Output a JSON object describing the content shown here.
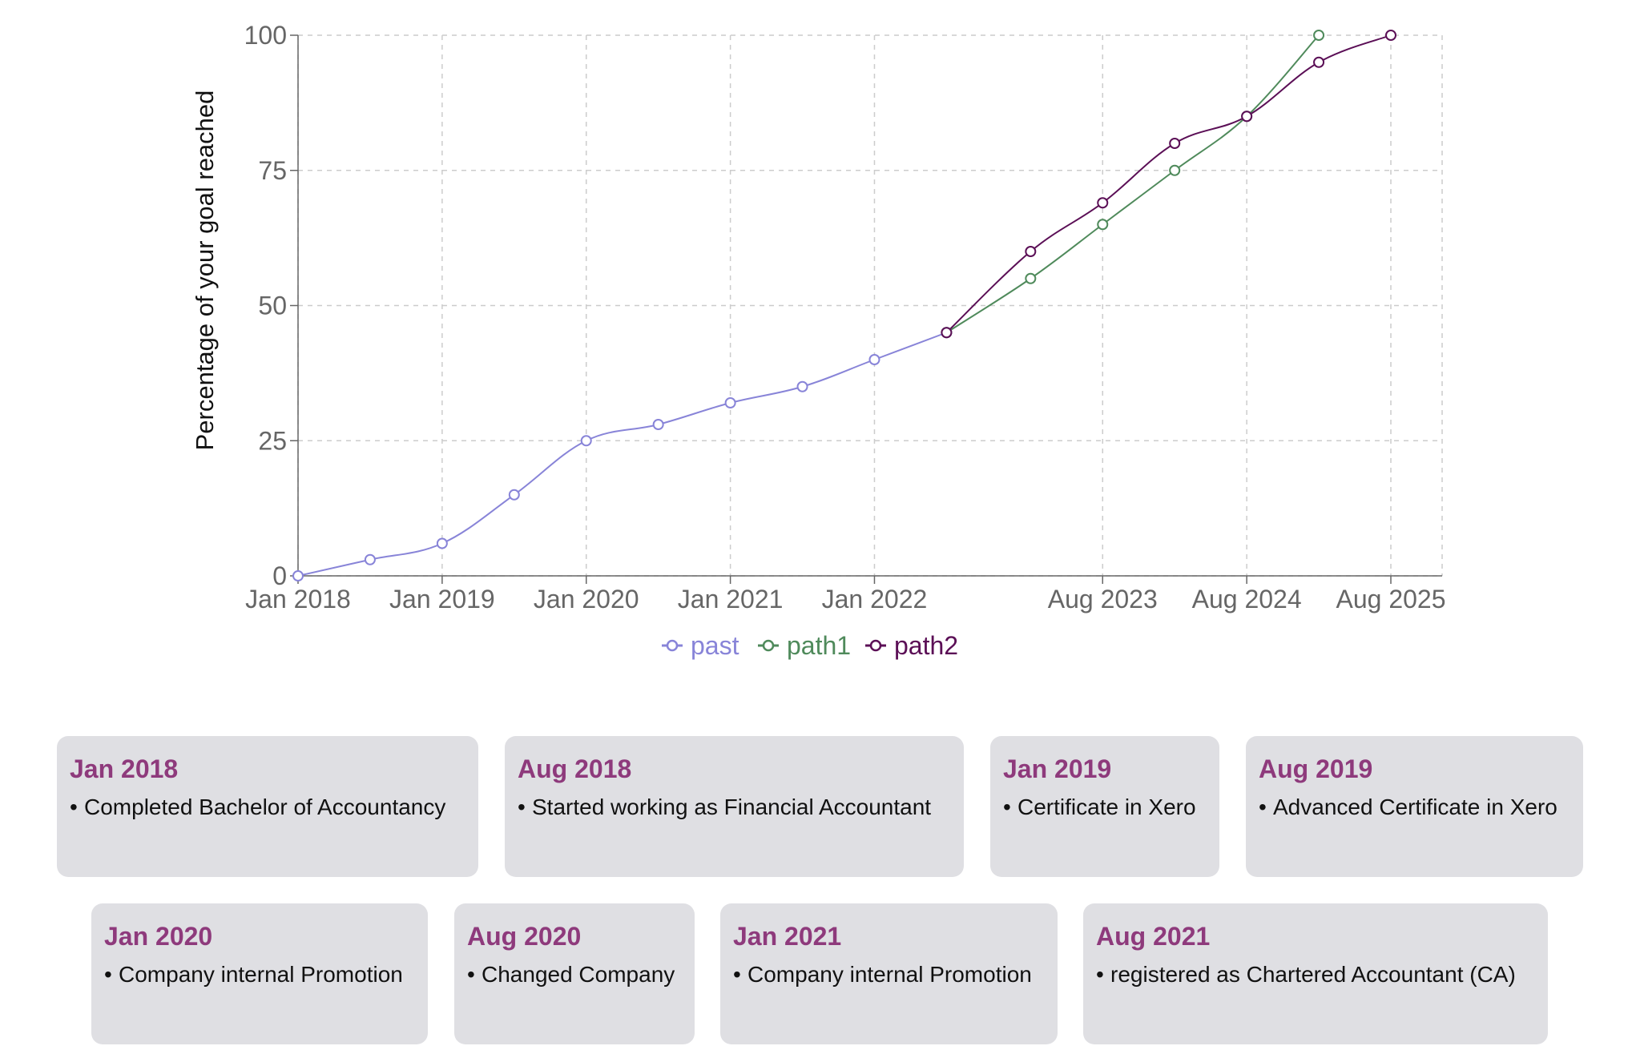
{
  "chart_data": {
    "type": "line",
    "ylabel": "Percentage of your goal reached",
    "ylim": [
      0,
      100
    ],
    "yticks": [
      0,
      25,
      50,
      75,
      100
    ],
    "xlim": [
      "2018-01",
      "2025-08"
    ],
    "xticks": [
      {
        "date": "2018-01",
        "label": "Jan 2018"
      },
      {
        "date": "2019-01",
        "label": "Jan 2019"
      },
      {
        "date": "2020-01",
        "label": "Jan 2020"
      },
      {
        "date": "2021-01",
        "label": "Jan 2021"
      },
      {
        "date": "2022-01",
        "label": "Jan 2022"
      },
      {
        "date": "2023-08",
        "label": "Aug 2023"
      },
      {
        "date": "2024-08",
        "label": "Aug 2024"
      },
      {
        "date": "2025-08",
        "label": "Aug 2025"
      }
    ],
    "grid": true,
    "legend_position": "bottom",
    "series": [
      {
        "name": "past",
        "color": "#8884d8",
        "points": [
          {
            "x": "2018-01",
            "y": 0
          },
          {
            "x": "2018-07",
            "y": 3
          },
          {
            "x": "2019-01",
            "y": 6
          },
          {
            "x": "2019-07",
            "y": 15
          },
          {
            "x": "2020-01",
            "y": 25
          },
          {
            "x": "2020-07",
            "y": 28
          },
          {
            "x": "2021-01",
            "y": 32
          },
          {
            "x": "2021-07",
            "y": 35
          },
          {
            "x": "2022-01",
            "y": 40
          },
          {
            "x": "2022-07",
            "y": 45
          }
        ]
      },
      {
        "name": "path1",
        "color": "#4f8a5b",
        "points": [
          {
            "x": "2022-07",
            "y": 45
          },
          {
            "x": "2023-02",
            "y": 55
          },
          {
            "x": "2023-08",
            "y": 65
          },
          {
            "x": "2024-02",
            "y": 75
          },
          {
            "x": "2024-08",
            "y": 85
          },
          {
            "x": "2025-02",
            "y": 100
          }
        ]
      },
      {
        "name": "path2",
        "color": "#5b0f56",
        "points": [
          {
            "x": "2022-07",
            "y": 45
          },
          {
            "x": "2023-02",
            "y": 60
          },
          {
            "x": "2023-08",
            "y": 69
          },
          {
            "x": "2024-02",
            "y": 80
          },
          {
            "x": "2024-08",
            "y": 85
          },
          {
            "x": "2025-02",
            "y": 95
          },
          {
            "x": "2025-08",
            "y": 100
          }
        ]
      }
    ]
  },
  "timeline": [
    {
      "date": "Jan 2018",
      "item": "Completed Bachelor of Accountancy"
    },
    {
      "date": "Aug 2018",
      "item": "Started working as Financial Accountant"
    },
    {
      "date": "Jan 2019",
      "item": "Certificate in Xero"
    },
    {
      "date": "Aug 2019",
      "item": "Advanced Certificate in Xero"
    },
    {
      "date": "Jan 2020",
      "item": "Company internal Promotion"
    },
    {
      "date": "Aug 2020",
      "item": "Changed Company"
    },
    {
      "date": "Jan 2021",
      "item": "Company internal Promotion"
    },
    {
      "date": "Aug 2021",
      "item": "registered as Chartered Accountant (CA)"
    }
  ],
  "colors": {
    "card_background": "#dfdfe3",
    "card_date": "#8e3a7c",
    "grid": "#cccccc",
    "axis": "#666666"
  }
}
